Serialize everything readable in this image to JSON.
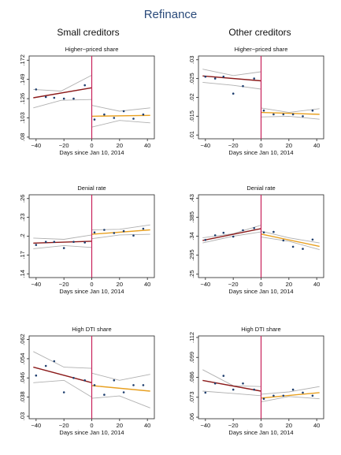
{
  "figure": {
    "title": "Refinance",
    "columns": [
      "Small creditors",
      "Other creditors"
    ]
  },
  "colors": {
    "title": "#2a4a7a",
    "fit_before": "#8b1a1a",
    "fit_after": "#e8a020",
    "cutoff_line": "#c8205a",
    "confidence_band": "#b0b0b0",
    "points": "#1f3f6f"
  },
  "chart_data": [
    {
      "type": "scatter",
      "group": "Small creditors",
      "title": "Higher−priced share",
      "xlabel": "Days since Jan 10, 2014",
      "ylabel": "",
      "xlim": [
        -45,
        45
      ],
      "ylim": [
        0.078,
        0.177
      ],
      "xticks": [
        -40,
        -20,
        0,
        20,
        40
      ],
      "xtick_labels": [
        "−40",
        "−20",
        "0",
        "20",
        "40"
      ],
      "yticks": [
        0.08,
        0.103,
        0.126,
        0.149,
        0.172
      ],
      "ytick_labels": [
        ".08",
        ".103",
        ".126",
        ".149",
        ".172"
      ],
      "cutoff": 0,
      "points": [
        [
          -40,
          0.137
        ],
        [
          -33,
          0.128
        ],
        [
          -27,
          0.127
        ],
        [
          -20,
          0.126
        ],
        [
          -13,
          0.126
        ],
        [
          -5,
          0.142
        ],
        [
          2,
          0.101
        ],
        [
          9,
          0.107
        ],
        [
          16,
          0.103
        ],
        [
          23,
          0.111
        ],
        [
          30,
          0.102
        ],
        [
          37,
          0.107
        ]
      ],
      "fit_before": [
        [
          -42,
          0.127
        ],
        [
          0,
          0.139
        ]
      ],
      "ci_before_upper": [
        [
          -42,
          0.137
        ],
        [
          -22,
          0.135
        ],
        [
          0,
          0.154
        ]
      ],
      "ci_before_lower": [
        [
          -42,
          0.115
        ],
        [
          -22,
          0.124
        ],
        [
          0,
          0.125
        ]
      ],
      "fit_after": [
        [
          0,
          0.105
        ],
        [
          42,
          0.106
        ]
      ],
      "ci_after_upper": [
        [
          0,
          0.118
        ],
        [
          20,
          0.111
        ],
        [
          42,
          0.115
        ]
      ],
      "ci_after_lower": [
        [
          0,
          0.092
        ],
        [
          20,
          0.1
        ],
        [
          42,
          0.097
        ]
      ]
    },
    {
      "type": "scatter",
      "group": "Other creditors",
      "title": "Higher−priced share",
      "xlabel": "Days since Jan 10, 2014",
      "ylabel": "",
      "xlim": [
        -45,
        45
      ],
      "ylim": [
        0.009,
        0.031
      ],
      "xticks": [
        -40,
        -20,
        0,
        20,
        40
      ],
      "xtick_labels": [
        "−40",
        "−20",
        "0",
        "20",
        "40"
      ],
      "yticks": [
        0.01,
        0.015,
        0.02,
        0.025,
        0.03
      ],
      "ytick_labels": [
        ".01",
        ".015",
        ".02",
        ".025",
        ".03"
      ],
      "cutoff": 0,
      "points": [
        [
          -40,
          0.0255
        ],
        [
          -33,
          0.025
        ],
        [
          -27,
          0.0255
        ],
        [
          -20,
          0.021
        ],
        [
          -13,
          0.023
        ],
        [
          -5,
          0.025
        ],
        [
          2,
          0.0165
        ],
        [
          9,
          0.0155
        ],
        [
          16,
          0.0155
        ],
        [
          23,
          0.0155
        ],
        [
          30,
          0.015
        ],
        [
          37,
          0.0165
        ]
      ],
      "fit_before": [
        [
          -42,
          0.0257
        ],
        [
          0,
          0.0244
        ]
      ],
      "ci_before_upper": [
        [
          -42,
          0.0275
        ],
        [
          -20,
          0.0258
        ],
        [
          0,
          0.0268
        ]
      ],
      "ci_before_lower": [
        [
          -42,
          0.024
        ],
        [
          -20,
          0.0232
        ],
        [
          0,
          0.0222
        ]
      ],
      "fit_after": [
        [
          0,
          0.016
        ],
        [
          42,
          0.0155
        ]
      ],
      "ci_after_upper": [
        [
          0,
          0.0172
        ],
        [
          20,
          0.016
        ],
        [
          42,
          0.017
        ]
      ],
      "ci_after_lower": [
        [
          0,
          0.0148
        ],
        [
          20,
          0.015
        ],
        [
          42,
          0.0142
        ]
      ]
    },
    {
      "type": "scatter",
      "group": "Small creditors",
      "title": "Denial rate",
      "xlabel": "Days since Jan 10, 2014",
      "ylabel": "",
      "xlim": [
        -45,
        45
      ],
      "ylim": [
        0.134,
        0.266
      ],
      "xticks": [
        -40,
        -20,
        0,
        20,
        40
      ],
      "xtick_labels": [
        "−40",
        "−20",
        "0",
        "20",
        "40"
      ],
      "yticks": [
        0.14,
        0.17,
        0.2,
        0.23,
        0.26
      ],
      "ytick_labels": [
        ".14",
        ".17",
        ".2",
        ".23",
        ".26"
      ],
      "cutoff": 0,
      "points": [
        [
          -40,
          0.186
        ],
        [
          -33,
          0.191
        ],
        [
          -27,
          0.191
        ],
        [
          -20,
          0.181
        ],
        [
          -13,
          0.191
        ],
        [
          -5,
          0.19
        ],
        [
          2,
          0.206
        ],
        [
          9,
          0.21
        ],
        [
          16,
          0.205
        ],
        [
          23,
          0.208
        ],
        [
          30,
          0.201
        ],
        [
          37,
          0.212
        ]
      ],
      "fit_before": [
        [
          -42,
          0.189
        ],
        [
          0,
          0.192
        ]
      ],
      "ci_before_upper": [
        [
          -42,
          0.197
        ],
        [
          -20,
          0.195
        ],
        [
          0,
          0.202
        ]
      ],
      "ci_before_lower": [
        [
          -42,
          0.18
        ],
        [
          -20,
          0.185
        ],
        [
          0,
          0.182
        ]
      ],
      "fit_after": [
        [
          0,
          0.203
        ],
        [
          42,
          0.21
        ]
      ],
      "ci_after_upper": [
        [
          0,
          0.21
        ],
        [
          20,
          0.211
        ],
        [
          42,
          0.218
        ]
      ],
      "ci_after_lower": [
        [
          0,
          0.196
        ],
        [
          20,
          0.202
        ],
        [
          42,
          0.203
        ]
      ]
    },
    {
      "type": "scatter",
      "group": "Other creditors",
      "title": "Denial rate",
      "xlabel": "Days since Jan 10, 2014",
      "ylabel": "",
      "xlim": [
        -45,
        45
      ],
      "ylim": [
        0.242,
        0.438
      ],
      "xticks": [
        -40,
        -20,
        0,
        20,
        40
      ],
      "xtick_labels": [
        "−40",
        "−20",
        "0",
        "20",
        "40"
      ],
      "yticks": [
        0.25,
        0.295,
        0.34,
        0.385,
        0.43
      ],
      "ytick_labels": [
        ".25",
        ".295",
        ".34",
        ".385",
        ".43"
      ],
      "cutoff": 0,
      "points": [
        [
          -40,
          0.331
        ],
        [
          -33,
          0.342
        ],
        [
          -27,
          0.348
        ],
        [
          -20,
          0.339
        ],
        [
          -13,
          0.354
        ],
        [
          -5,
          0.359
        ],
        [
          2,
          0.349
        ],
        [
          9,
          0.35
        ],
        [
          16,
          0.33
        ],
        [
          23,
          0.315
        ],
        [
          30,
          0.31
        ],
        [
          37,
          0.332
        ]
      ],
      "fit_before": [
        [
          -42,
          0.33
        ],
        [
          0,
          0.358
        ]
      ],
      "ci_before_upper": [
        [
          -42,
          0.336
        ],
        [
          -20,
          0.346
        ],
        [
          0,
          0.366
        ]
      ],
      "ci_before_lower": [
        [
          -42,
          0.324
        ],
        [
          -20,
          0.34
        ],
        [
          0,
          0.35
        ]
      ],
      "fit_after": [
        [
          0,
          0.345
        ],
        [
          42,
          0.316
        ]
      ],
      "ci_after_upper": [
        [
          0,
          0.352
        ],
        [
          20,
          0.336
        ],
        [
          42,
          0.324
        ]
      ],
      "ci_after_lower": [
        [
          0,
          0.338
        ],
        [
          20,
          0.328
        ],
        [
          42,
          0.308
        ]
      ]
    },
    {
      "type": "scatter",
      "group": "Small creditors",
      "title": "High DTI share",
      "xlabel": "Days since Jan 10, 2014",
      "ylabel": "",
      "xlim": [
        -45,
        45
      ],
      "ylim": [
        0.029,
        0.0635
      ],
      "xticks": [
        -40,
        -20,
        0,
        20,
        40
      ],
      "xtick_labels": [
        "−40",
        "−20",
        "0",
        "20",
        "40"
      ],
      "yticks": [
        0.03,
        0.038,
        0.046,
        0.054,
        0.062
      ],
      "ytick_labels": [
        ".03",
        ".038",
        ".046",
        ".054",
        ".062"
      ],
      "cutoff": 0,
      "points": [
        [
          -40,
          0.047
        ],
        [
          -33,
          0.051
        ],
        [
          -27,
          0.053
        ],
        [
          -20,
          0.04
        ],
        [
          -13,
          0.046
        ],
        [
          -5,
          0.045
        ],
        [
          2,
          0.043
        ],
        [
          9,
          0.039
        ],
        [
          16,
          0.045
        ],
        [
          23,
          0.04
        ],
        [
          30,
          0.043
        ],
        [
          37,
          0.043
        ]
      ],
      "fit_before": [
        [
          -42,
          0.0505
        ],
        [
          0,
          0.044
        ]
      ],
      "ci_before_upper": [
        [
          -42,
          0.057
        ],
        [
          -20,
          0.0505
        ],
        [
          0,
          0.05
        ]
      ],
      "ci_before_lower": [
        [
          -42,
          0.044
        ],
        [
          -20,
          0.045
        ],
        [
          0,
          0.038
        ]
      ],
      "fit_after": [
        [
          0,
          0.0428
        ],
        [
          42,
          0.0405
        ]
      ],
      "ci_after_upper": [
        [
          0,
          0.048
        ],
        [
          20,
          0.045
        ],
        [
          42,
          0.0475
        ]
      ],
      "ci_after_lower": [
        [
          0,
          0.0375
        ],
        [
          20,
          0.0385
        ],
        [
          42,
          0.0335
        ]
      ]
    },
    {
      "type": "scatter",
      "group": "Other creditors",
      "title": "High DTI share",
      "xlabel": "Days since Jan 10, 2014",
      "ylabel": "",
      "xlim": [
        -45,
        45
      ],
      "ylim": [
        0.059,
        0.113
      ],
      "xticks": [
        -40,
        -20,
        0,
        20,
        40
      ],
      "xtick_labels": [
        "−40",
        "−20",
        "0",
        "20",
        "40"
      ],
      "yticks": [
        0.06,
        0.073,
        0.086,
        0.099,
        0.112
      ],
      "ytick_labels": [
        ".06",
        ".073",
        ".086",
        ".099",
        ".112"
      ],
      "cutoff": 0,
      "points": [
        [
          -40,
          0.076
        ],
        [
          -33,
          0.082
        ],
        [
          -27,
          0.087
        ],
        [
          -20,
          0.078
        ],
        [
          -13,
          0.082
        ],
        [
          -5,
          0.078
        ],
        [
          2,
          0.072
        ],
        [
          9,
          0.074
        ],
        [
          16,
          0.074
        ],
        [
          23,
          0.078
        ],
        [
          30,
          0.076
        ],
        [
          37,
          0.074
        ]
      ],
      "fit_before": [
        [
          -42,
          0.084
        ],
        [
          0,
          0.077
        ]
      ],
      "ci_before_upper": [
        [
          -42,
          0.091
        ],
        [
          -20,
          0.0805
        ],
        [
          0,
          0.08
        ]
      ],
      "ci_before_lower": [
        [
          -42,
          0.077
        ],
        [
          -20,
          0.0755
        ],
        [
          0,
          0.074
        ]
      ],
      "fit_after": [
        [
          0,
          0.0725
        ],
        [
          42,
          0.076
        ]
      ],
      "ci_after_upper": [
        [
          0,
          0.075
        ],
        [
          20,
          0.0765
        ],
        [
          42,
          0.08
        ]
      ],
      "ci_after_lower": [
        [
          0,
          0.07
        ],
        [
          20,
          0.0735
        ],
        [
          42,
          0.072
        ]
      ]
    }
  ]
}
